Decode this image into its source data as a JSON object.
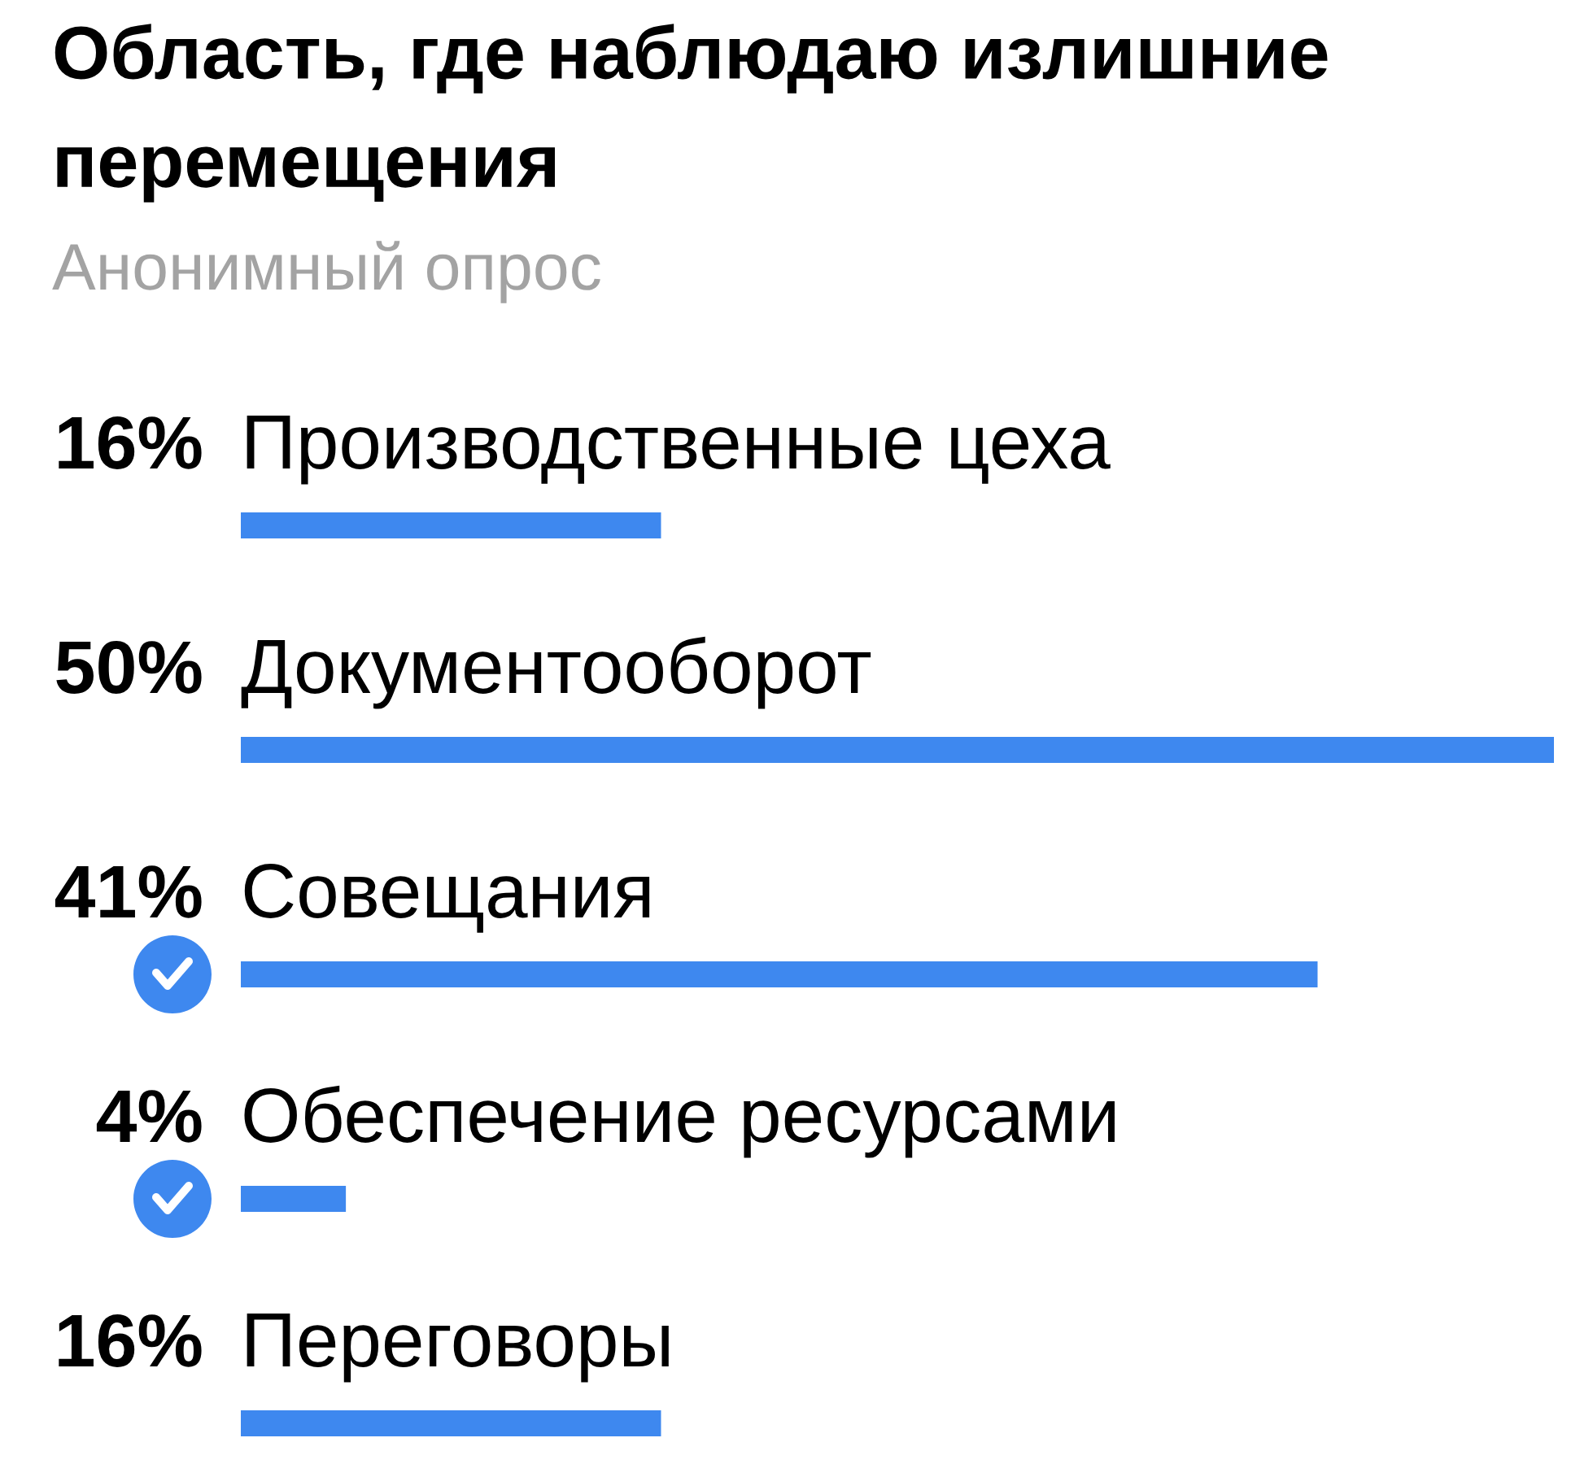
{
  "chart_data": {
    "type": "bar",
    "orientation": "horizontal",
    "title": "Область, где наблюдаю излишние перемещения",
    "subtitle": "Анонимный опрос",
    "categories": [
      "Производственные цеха",
      "Документооборот",
      "Совещания",
      "Обеспечение ресурсами",
      "Переговоры"
    ],
    "values": [
      16,
      50,
      41,
      4,
      16
    ],
    "value_labels": [
      "16%",
      "50%",
      "41%",
      "4%",
      "16%"
    ],
    "color": "#3e88ef",
    "xlim": [
      0,
      50
    ],
    "tick_labels": false
  }
}
